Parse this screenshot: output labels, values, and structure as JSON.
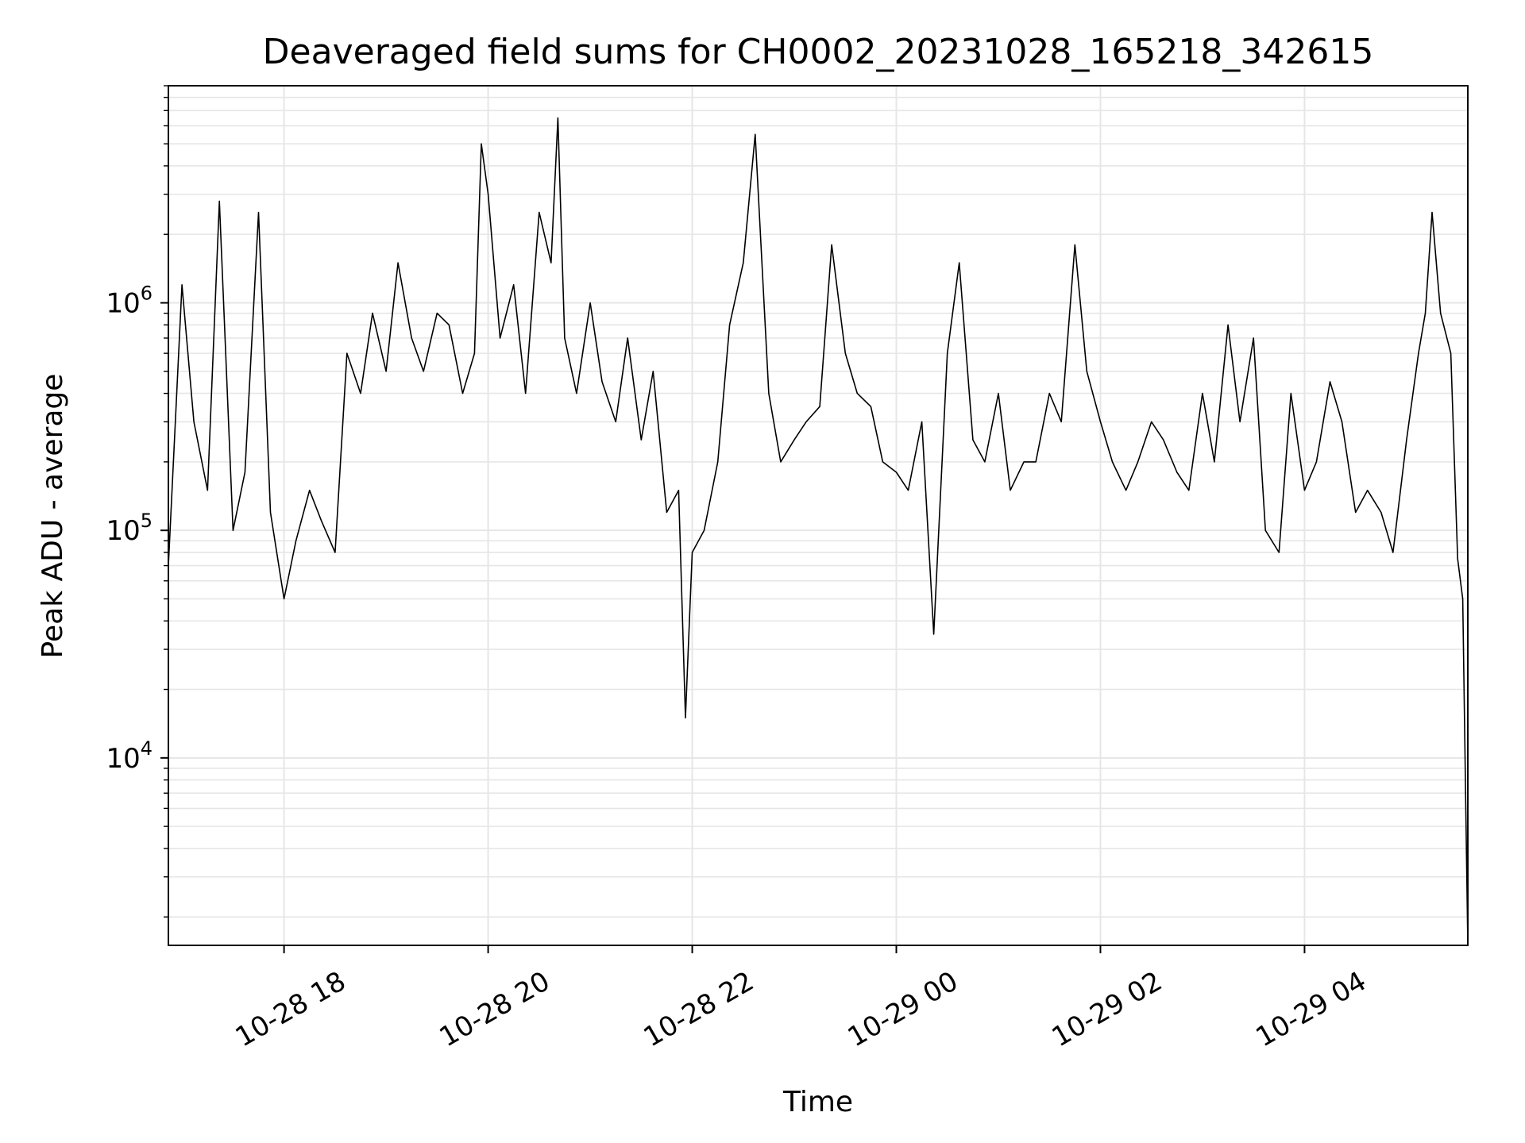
{
  "chart_data": {
    "type": "line",
    "title": "Deaveraged field sums for CH0002_20231028_165218_342615",
    "xlabel": "Time",
    "ylabel": "Peak ADU - average",
    "xlim": [
      "2023-10-28 16:52",
      "2023-10-29 05:36"
    ],
    "ylim": [
      1500,
      9000000
    ],
    "yscale": "log",
    "grid": true,
    "line_color": "#000000",
    "grid_color": "#e6e6e6",
    "x_ticks": [
      {
        "x": "2023-10-28 18:00",
        "label": "10-28 18"
      },
      {
        "x": "2023-10-28 20:00",
        "label": "10-28 20"
      },
      {
        "x": "2023-10-28 22:00",
        "label": "10-28 22"
      },
      {
        "x": "2023-10-29 00:00",
        "label": "10-29 00"
      },
      {
        "x": "2023-10-29 02:00",
        "label": "10-29 02"
      },
      {
        "x": "2023-10-29 04:00",
        "label": "10-29 04"
      }
    ],
    "y_ticks": [
      {
        "y": 10000,
        "base": "10",
        "exp": "4"
      },
      {
        "y": 100000,
        "base": "10",
        "exp": "5"
      },
      {
        "y": 1000000,
        "base": "10",
        "exp": "6"
      }
    ],
    "series": [
      {
        "x": [
          "2023-10-28 16:52",
          "2023-10-28 17:00",
          "2023-10-28 17:07",
          "2023-10-28 17:15",
          "2023-10-28 17:22",
          "2023-10-28 17:30",
          "2023-10-28 17:37",
          "2023-10-28 17:45",
          "2023-10-28 17:52",
          "2023-10-28 18:00",
          "2023-10-28 18:07",
          "2023-10-28 18:15",
          "2023-10-28 18:22",
          "2023-10-28 18:30",
          "2023-10-28 18:37",
          "2023-10-28 18:45",
          "2023-10-28 18:52",
          "2023-10-28 19:00",
          "2023-10-28 19:07",
          "2023-10-28 19:15",
          "2023-10-28 19:22",
          "2023-10-28 19:30",
          "2023-10-28 19:37",
          "2023-10-28 19:45",
          "2023-10-28 19:52",
          "2023-10-28 19:56",
          "2023-10-28 20:00",
          "2023-10-28 20:07",
          "2023-10-28 20:15",
          "2023-10-28 20:22",
          "2023-10-28 20:30",
          "2023-10-28 20:37",
          "2023-10-28 20:41",
          "2023-10-28 20:45",
          "2023-10-28 20:52",
          "2023-10-28 21:00",
          "2023-10-28 21:07",
          "2023-10-28 21:15",
          "2023-10-28 21:22",
          "2023-10-28 21:30",
          "2023-10-28 21:37",
          "2023-10-28 21:45",
          "2023-10-28 21:52",
          "2023-10-28 21:56",
          "2023-10-28 22:00",
          "2023-10-28 22:07",
          "2023-10-28 22:15",
          "2023-10-28 22:22",
          "2023-10-28 22:30",
          "2023-10-28 22:37",
          "2023-10-28 22:45",
          "2023-10-28 22:52",
          "2023-10-28 23:00",
          "2023-10-28 23:07",
          "2023-10-28 23:15",
          "2023-10-28 23:22",
          "2023-10-28 23:30",
          "2023-10-28 23:37",
          "2023-10-28 23:45",
          "2023-10-28 23:52",
          "2023-10-29 00:00",
          "2023-10-29 00:07",
          "2023-10-29 00:15",
          "2023-10-29 00:22",
          "2023-10-29 00:30",
          "2023-10-29 00:37",
          "2023-10-29 00:45",
          "2023-10-29 00:52",
          "2023-10-29 01:00",
          "2023-10-29 01:07",
          "2023-10-29 01:15",
          "2023-10-29 01:22",
          "2023-10-29 01:30",
          "2023-10-29 01:37",
          "2023-10-29 01:45",
          "2023-10-29 01:52",
          "2023-10-29 02:00",
          "2023-10-29 02:07",
          "2023-10-29 02:15",
          "2023-10-29 02:22",
          "2023-10-29 02:30",
          "2023-10-29 02:37",
          "2023-10-29 02:45",
          "2023-10-29 02:52",
          "2023-10-29 03:00",
          "2023-10-29 03:07",
          "2023-10-29 03:15",
          "2023-10-29 03:22",
          "2023-10-29 03:30",
          "2023-10-29 03:37",
          "2023-10-29 03:45",
          "2023-10-29 03:52",
          "2023-10-29 04:00",
          "2023-10-29 04:07",
          "2023-10-29 04:15",
          "2023-10-29 04:22",
          "2023-10-29 04:30",
          "2023-10-29 04:37",
          "2023-10-29 04:45",
          "2023-10-29 04:52",
          "2023-10-29 05:00",
          "2023-10-29 05:07",
          "2023-10-29 05:11",
          "2023-10-29 05:15",
          "2023-10-29 05:20",
          "2023-10-29 05:26",
          "2023-10-29 05:30",
          "2023-10-29 05:33",
          "2023-10-29 05:36"
        ],
        "y": [
          70000,
          1200000,
          300000,
          150000,
          2800000,
          100000,
          180000,
          2500000,
          120000,
          50000,
          90000,
          150000,
          110000,
          80000,
          600000,
          400000,
          900000,
          500000,
          1500000,
          700000,
          500000,
          900000,
          800000,
          400000,
          600000,
          5000000,
          3000000,
          700000,
          1200000,
          400000,
          2500000,
          1500000,
          6500000,
          700000,
          400000,
          1000000,
          450000,
          300000,
          700000,
          250000,
          500000,
          120000,
          150000,
          15000,
          80000,
          100000,
          200000,
          800000,
          1500000,
          5500000,
          400000,
          200000,
          250000,
          300000,
          350000,
          1800000,
          600000,
          400000,
          350000,
          200000,
          180000,
          150000,
          300000,
          35000,
          600000,
          1500000,
          250000,
          200000,
          400000,
          150000,
          200000,
          200000,
          400000,
          300000,
          1800000,
          500000,
          300000,
          200000,
          150000,
          200000,
          300000,
          250000,
          180000,
          150000,
          400000,
          200000,
          800000,
          300000,
          700000,
          100000,
          80000,
          400000,
          150000,
          200000,
          450000,
          300000,
          120000,
          150000,
          120000,
          80000,
          250000,
          600000,
          900000,
          2500000,
          900000,
          600000,
          75000,
          50000,
          1500
        ]
      }
    ]
  }
}
